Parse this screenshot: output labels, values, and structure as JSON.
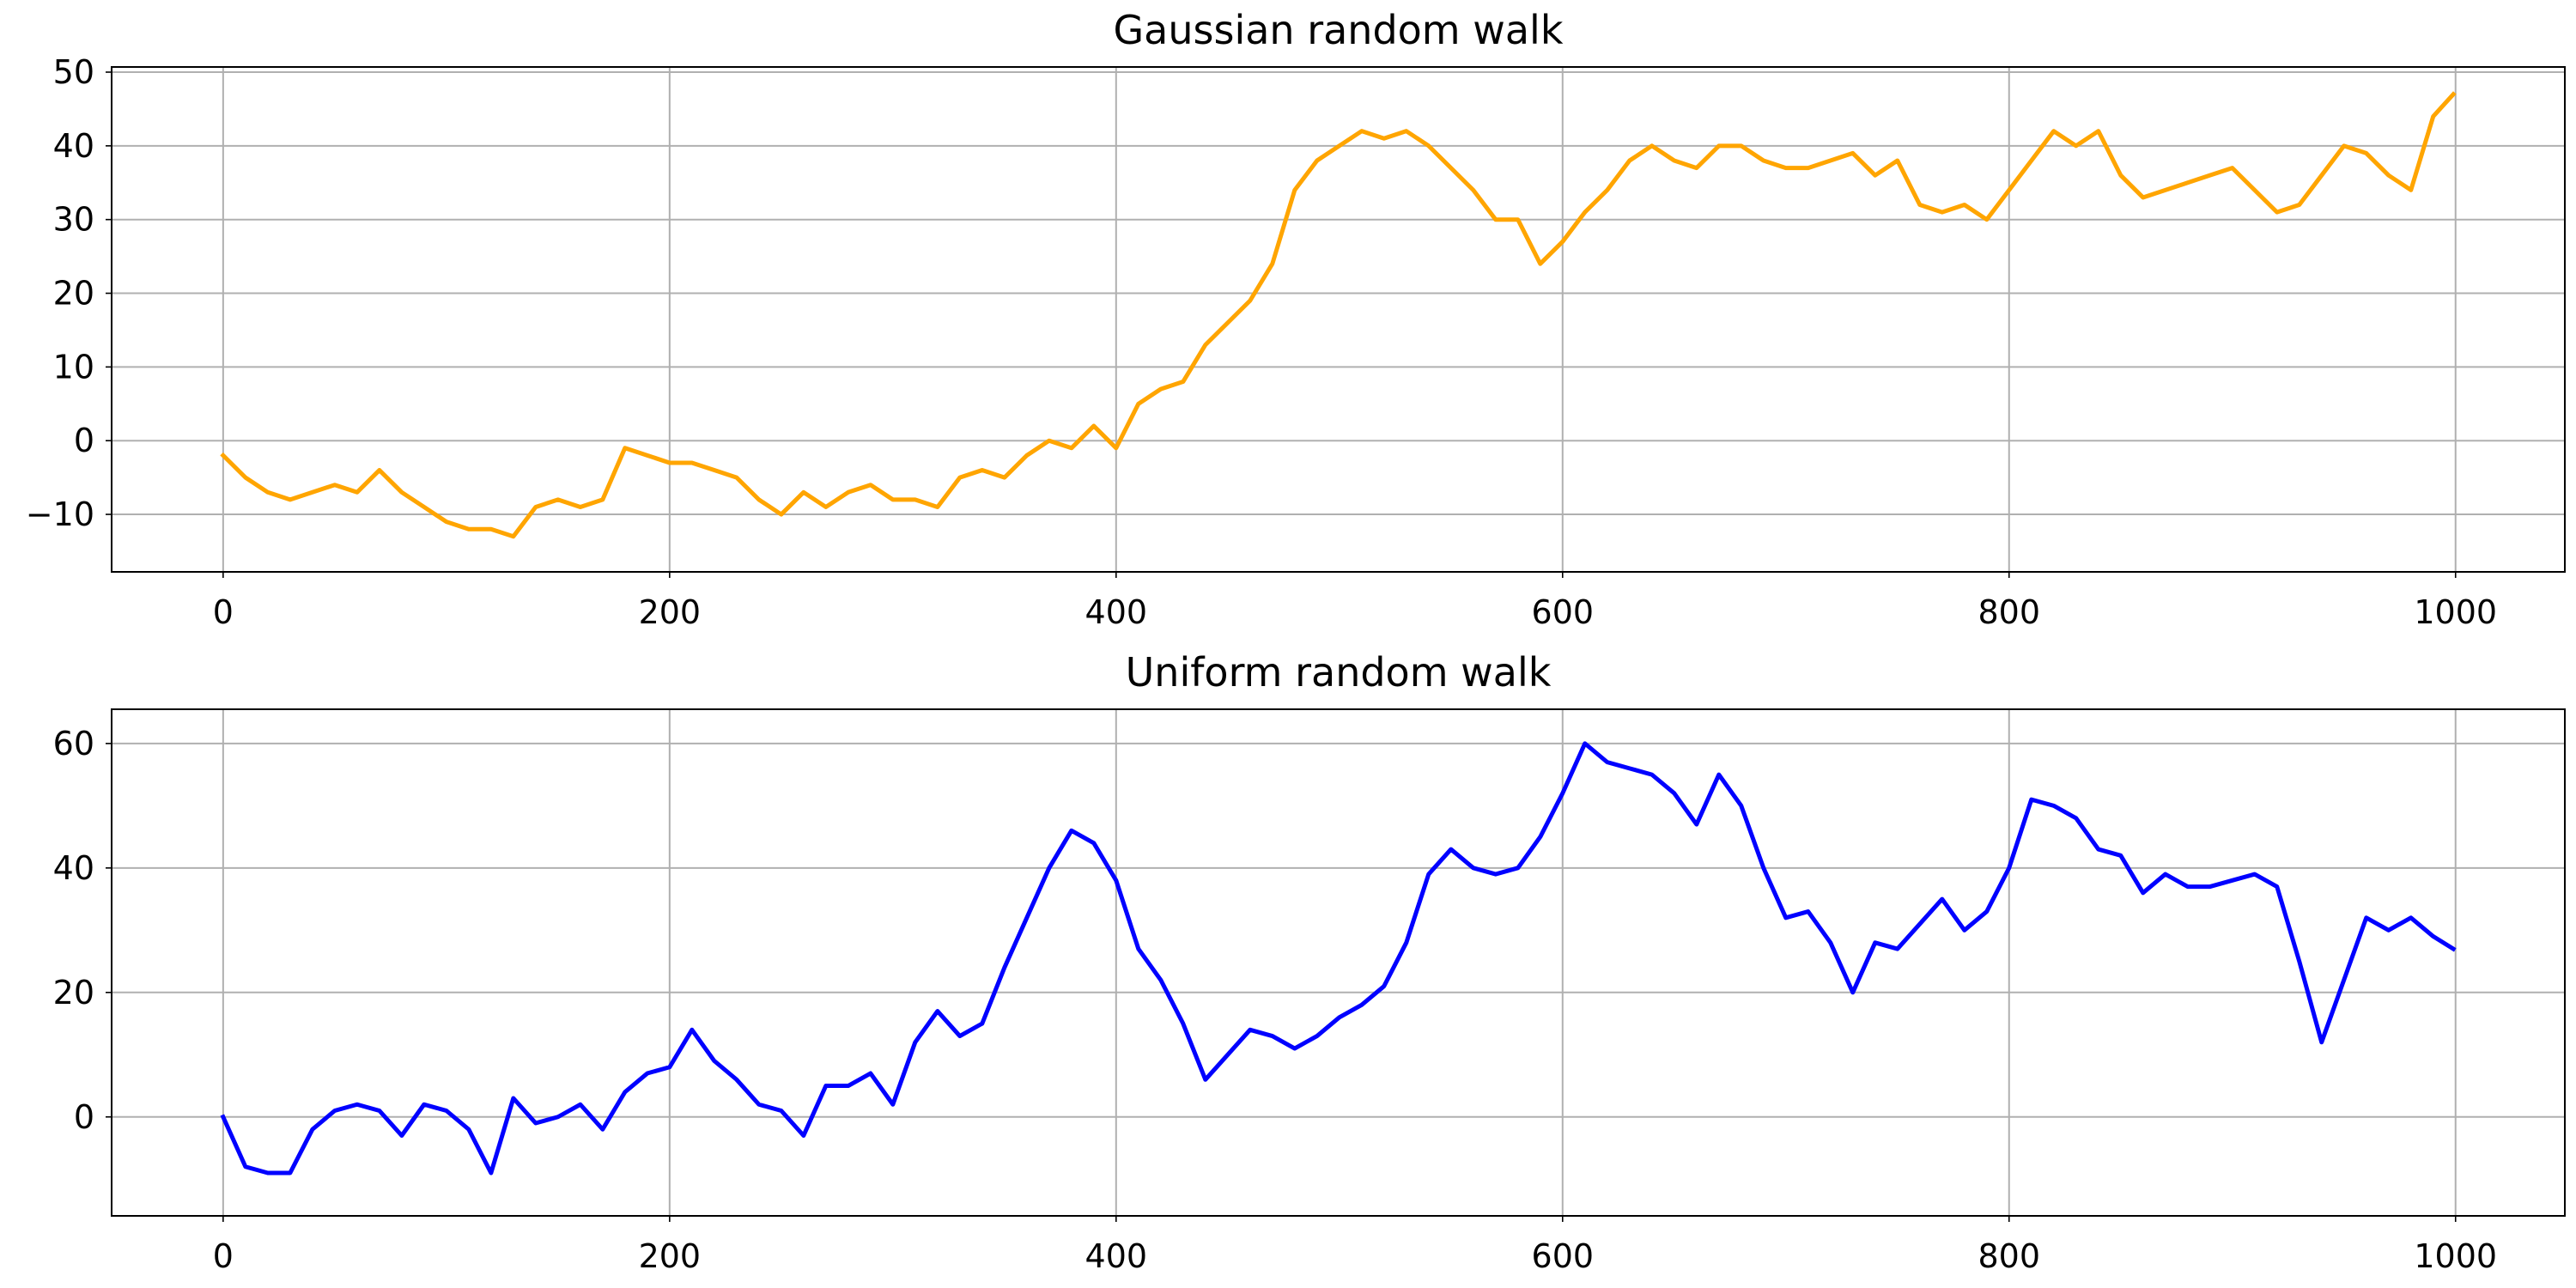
{
  "chart_data": [
    {
      "type": "line",
      "title": "Gaussian random walk",
      "x": [
        0,
        10,
        20,
        30,
        40,
        50,
        60,
        70,
        80,
        90,
        100,
        110,
        120,
        130,
        140,
        150,
        160,
        170,
        180,
        190,
        200,
        210,
        220,
        230,
        240,
        250,
        260,
        270,
        280,
        290,
        300,
        310,
        320,
        330,
        340,
        350,
        360,
        370,
        380,
        390,
        400,
        410,
        420,
        430,
        440,
        450,
        460,
        470,
        480,
        490,
        500,
        510,
        520,
        530,
        540,
        550,
        560,
        570,
        580,
        590,
        600,
        610,
        620,
        630,
        640,
        650,
        660,
        670,
        680,
        690,
        700,
        710,
        720,
        730,
        740,
        750,
        760,
        770,
        780,
        790,
        800,
        810,
        820,
        830,
        840,
        850,
        860,
        870,
        880,
        890,
        900,
        910,
        920,
        930,
        940,
        950,
        960,
        970,
        980,
        990,
        999
      ],
      "values": [
        -2,
        -5,
        -7,
        -8,
        -7,
        -6,
        -7,
        -4,
        -7,
        -9,
        -11,
        -12,
        -12,
        -13,
        -9,
        -8,
        -9,
        -8,
        -1,
        -2,
        -3,
        -3,
        -4,
        -5,
        -8,
        -10,
        -7,
        -9,
        -7,
        -6,
        -8,
        -8,
        -9,
        -5,
        -4,
        -5,
        -2,
        0,
        -1,
        2,
        -1,
        5,
        7,
        8,
        13,
        16,
        19,
        24,
        34,
        38,
        40,
        42,
        41,
        42,
        40,
        37,
        34,
        30,
        30,
        24,
        27,
        31,
        34,
        38,
        40,
        38,
        37,
        40,
        40,
        38,
        37,
        37,
        38,
        39,
        36,
        38,
        32,
        31,
        32,
        30,
        34,
        38,
        42,
        40,
        42,
        36,
        33,
        34,
        35,
        36,
        37,
        34,
        31,
        32,
        36,
        40,
        39,
        36,
        34,
        44,
        47
      ],
      "color": "#ffa500",
      "xlim": [
        -49.95,
        1048.95
      ],
      "xticks": [
        0,
        200,
        400,
        600,
        800,
        1000
      ],
      "ylim": [
        -17.8,
        50.7
      ],
      "yticks": [
        {
          "value": -10,
          "label": "−10"
        },
        0,
        10,
        20,
        30,
        40,
        50
      ],
      "grid": true
    },
    {
      "type": "line",
      "title": "Uniform random walk",
      "x": [
        0,
        10,
        20,
        30,
        40,
        50,
        60,
        70,
        80,
        90,
        100,
        110,
        120,
        130,
        140,
        150,
        160,
        170,
        180,
        190,
        200,
        210,
        220,
        230,
        240,
        250,
        260,
        270,
        280,
        290,
        300,
        310,
        320,
        330,
        340,
        350,
        360,
        370,
        380,
        390,
        400,
        410,
        420,
        430,
        440,
        450,
        460,
        470,
        480,
        490,
        500,
        510,
        520,
        530,
        540,
        550,
        560,
        570,
        580,
        590,
        600,
        610,
        620,
        630,
        640,
        650,
        660,
        670,
        680,
        690,
        700,
        710,
        720,
        730,
        740,
        750,
        760,
        770,
        780,
        790,
        800,
        810,
        820,
        830,
        840,
        850,
        860,
        870,
        880,
        890,
        900,
        910,
        920,
        930,
        940,
        950,
        960,
        970,
        980,
        990,
        999
      ],
      "values": [
        0,
        -8,
        -9,
        -9,
        -2,
        1,
        2,
        1,
        -3,
        2,
        1,
        -2,
        -9,
        3,
        -1,
        0,
        2,
        -2,
        4,
        7,
        8,
        14,
        9,
        6,
        2,
        1,
        -3,
        5,
        5,
        7,
        2,
        12,
        17,
        13,
        15,
        24,
        32,
        40,
        46,
        44,
        38,
        27,
        22,
        15,
        6,
        10,
        14,
        13,
        11,
        13,
        16,
        18,
        21,
        28,
        39,
        43,
        40,
        39,
        40,
        45,
        52,
        60,
        57,
        56,
        55,
        52,
        47,
        55,
        50,
        40,
        32,
        33,
        28,
        20,
        28,
        27,
        31,
        35,
        30,
        33,
        40,
        51,
        50,
        48,
        43,
        42,
        36,
        39,
        37,
        37,
        38,
        39,
        37,
        25,
        12,
        22,
        32,
        30,
        32,
        29,
        27
      ],
      "color": "#0000ff",
      "xlim": [
        -49.95,
        1048.95
      ],
      "xticks": [
        0,
        200,
        400,
        600,
        800,
        1000
      ],
      "ylim": [
        -15.9,
        65.5
      ],
      "yticks": [
        0,
        20,
        40,
        60
      ],
      "grid": true
    }
  ]
}
